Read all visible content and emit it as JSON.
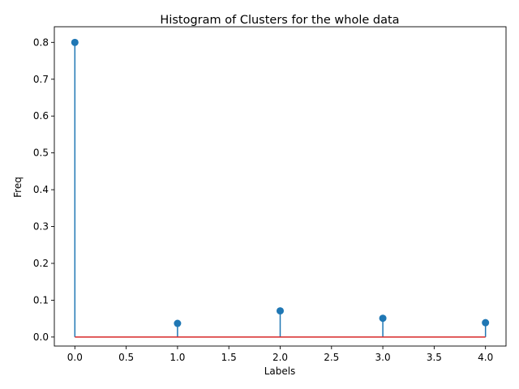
{
  "chart_data": {
    "type": "stem",
    "title": "Histogram of Clusters for the whole data",
    "xlabel": "Labels",
    "ylabel": "Freq",
    "x": [
      0,
      1,
      2,
      3,
      4
    ],
    "y": [
      0.8,
      0.037,
      0.071,
      0.051,
      0.039
    ],
    "xlim": [
      -0.2,
      4.2
    ],
    "ylim": [
      -0.0245,
      0.8425
    ],
    "xticks": [
      "0.0",
      "0.5",
      "1.0",
      "1.5",
      "2.0",
      "2.5",
      "3.0",
      "3.5",
      "4.0"
    ],
    "yticks": [
      "0.0",
      "0.1",
      "0.2",
      "0.3",
      "0.4",
      "0.5",
      "0.6",
      "0.7",
      "0.8"
    ],
    "grid": false,
    "colors": {
      "stem": "#1f77b4",
      "baseline": "#d62728",
      "axes": "#000000"
    }
  }
}
